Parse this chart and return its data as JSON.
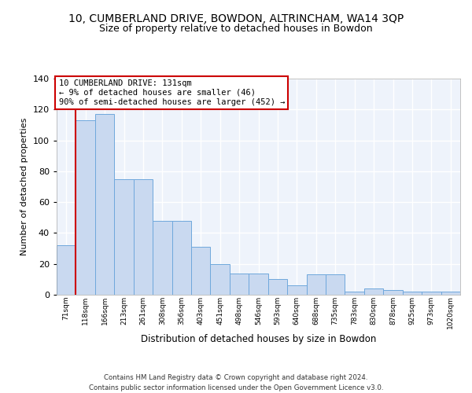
{
  "title1": "10, CUMBERLAND DRIVE, BOWDON, ALTRINCHAM, WA14 3QP",
  "title2": "Size of property relative to detached houses in Bowdon",
  "xlabel": "Distribution of detached houses by size in Bowdon",
  "ylabel": "Number of detached properties",
  "categories": [
    "71sqm",
    "118sqm",
    "166sqm",
    "213sqm",
    "261sqm",
    "308sqm",
    "356sqm",
    "403sqm",
    "451sqm",
    "498sqm",
    "546sqm",
    "593sqm",
    "640sqm",
    "688sqm",
    "735sqm",
    "783sqm",
    "830sqm",
    "878sqm",
    "925sqm",
    "973sqm",
    "1020sqm"
  ],
  "values": [
    32,
    113,
    117,
    75,
    75,
    48,
    48,
    31,
    20,
    14,
    14,
    10,
    6,
    13,
    13,
    2,
    4,
    3,
    2,
    2,
    2
  ],
  "bar_color": "#c9d9f0",
  "bar_edge_color": "#6fa8dc",
  "background_color": "#eef3fb",
  "grid_color": "#ffffff",
  "ylim": [
    0,
    140
  ],
  "yticks": [
    0,
    20,
    40,
    60,
    80,
    100,
    120,
    140
  ],
  "annotation_text": "10 CUMBERLAND DRIVE: 131sqm\n← 9% of detached houses are smaller (46)\n90% of semi-detached houses are larger (452) →",
  "footer": "Contains HM Land Registry data © Crown copyright and database right 2024.\nContains public sector information licensed under the Open Government Licence v3.0.",
  "title1_fontsize": 10,
  "title2_fontsize": 9,
  "annotation_box_color": "#ffffff",
  "annotation_box_edge": "#cc0000",
  "redline_color": "#cc0000",
  "redline_x": 0.5
}
